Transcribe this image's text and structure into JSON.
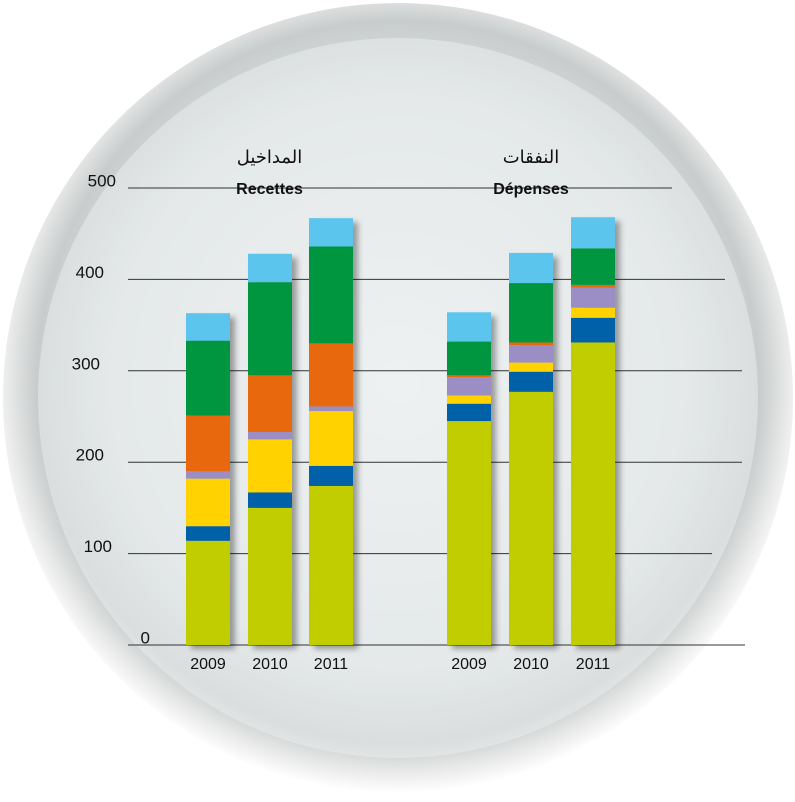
{
  "chart_data": {
    "type": "bar",
    "stacked": true,
    "ylim": [
      0,
      500
    ],
    "yticks": [
      0,
      100,
      200,
      300,
      400,
      500
    ],
    "grid": true,
    "groups": [
      {
        "title_ar": "المداخيل",
        "title": "Recettes",
        "categories": [
          "2009",
          "2010",
          "2011"
        ],
        "series": [
          {
            "color": "#c2cd00",
            "values": [
              114,
              150,
              174
            ]
          },
          {
            "color": "#0060a8",
            "values": [
              16,
              17,
              22
            ]
          },
          {
            "color": "#ffd200",
            "values": [
              52,
              58,
              60
            ]
          },
          {
            "color": "#9b8ec4",
            "values": [
              8,
              8,
              5
            ]
          },
          {
            "color": "#e8690d",
            "values": [
              61,
              62,
              69
            ]
          },
          {
            "color": "#00963f",
            "values": [
              82,
              102,
              106
            ]
          },
          {
            "color": "#5bc5ee",
            "values": [
              30,
              31,
              31
            ]
          }
        ]
      },
      {
        "title_ar": "النفقات",
        "title": "Dépenses",
        "categories": [
          "2009",
          "2010",
          "2011"
        ],
        "series": [
          {
            "color": "#c2cd00",
            "values": [
              245,
              277,
              331
            ]
          },
          {
            "color": "#0060a8",
            "values": [
              19,
              22,
              27
            ]
          },
          {
            "color": "#ffd200",
            "values": [
              9,
              10,
              11
            ]
          },
          {
            "color": "#9b8ec4",
            "values": [
              20,
              19,
              22
            ]
          },
          {
            "color": "#e8690d",
            "values": [
              2,
              3,
              3
            ]
          },
          {
            "color": "#00963f",
            "values": [
              37,
              65,
              40
            ]
          },
          {
            "color": "#5bc5ee",
            "values": [
              32,
              33,
              34
            ]
          }
        ]
      }
    ]
  }
}
